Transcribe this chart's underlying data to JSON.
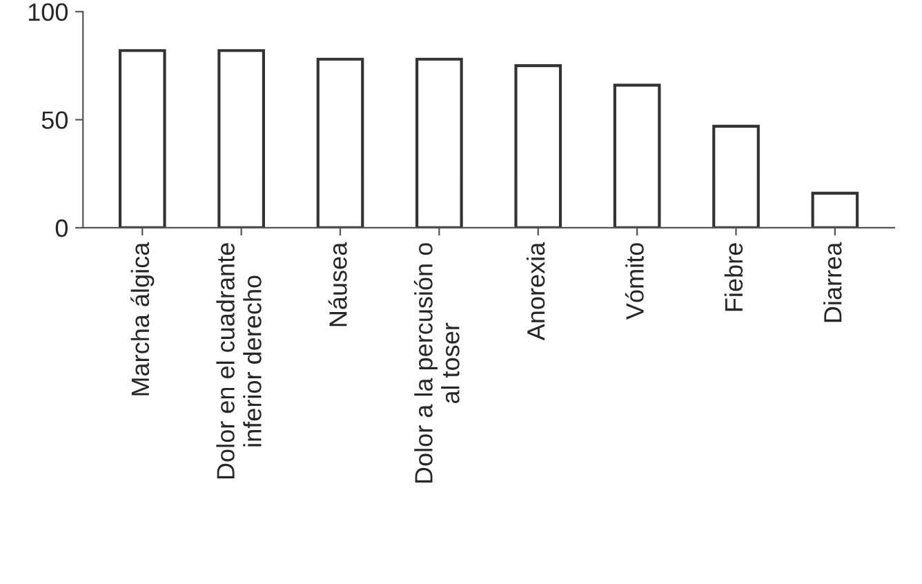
{
  "chart_data": {
    "type": "bar",
    "categories": [
      "Marcha álgica",
      "Dolor en el cuadrante\ninferior derecho",
      "Náusea",
      "Dolor a la percusión o\nal toser",
      "Anorexia",
      "Vómito",
      "Fiebre",
      "Diarrea"
    ],
    "values": [
      82,
      82,
      78,
      78,
      75,
      66,
      47,
      16
    ],
    "color": "#ffffff",
    "ylim": [
      0,
      100
    ],
    "yticks": [
      0,
      50,
      100
    ],
    "grid": false
  }
}
